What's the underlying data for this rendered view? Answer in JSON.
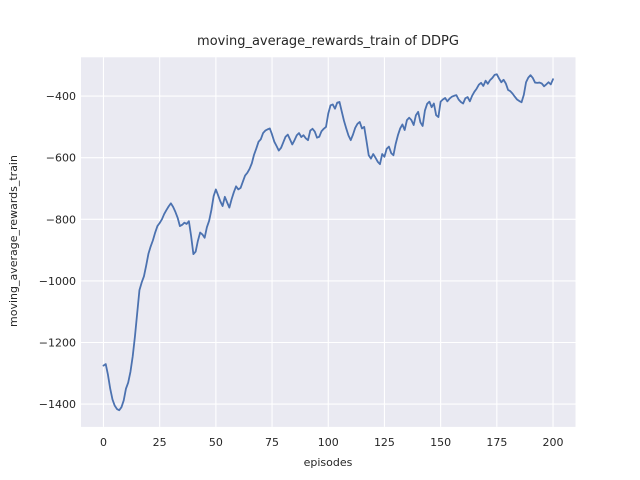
{
  "style": {
    "figure_bg": "#ffffff",
    "plot_bg": "#eaeaf2",
    "grid_color": "#ffffff",
    "text_color": "#262626",
    "line_color": "#4c72b0"
  },
  "chart_data": {
    "type": "line",
    "title": "moving_average_rewards_train of DDPG",
    "xlabel": "episodes",
    "ylabel": "moving_average_rewards_train",
    "x_ticks": [
      0,
      25,
      50,
      75,
      100,
      125,
      150,
      175,
      200
    ],
    "y_ticks": [
      -400,
      -600,
      -800,
      -1000,
      -1200,
      -1400
    ],
    "xlim": [
      -10,
      210
    ],
    "ylim": [
      -1474,
      -274
    ],
    "grid": true,
    "legend_position": "none",
    "series": [
      {
        "name": "moving_average_rewards_train",
        "color": "#4c72b0",
        "x_mode": "index",
        "x_start": 0,
        "x_step": 1,
        "values": [
          -1275,
          -1270,
          -1305,
          -1350,
          -1385,
          -1405,
          -1416,
          -1420,
          -1410,
          -1388,
          -1350,
          -1330,
          -1295,
          -1245,
          -1180,
          -1105,
          -1030,
          -1005,
          -985,
          -950,
          -912,
          -888,
          -868,
          -843,
          -822,
          -812,
          -800,
          -783,
          -770,
          -758,
          -748,
          -760,
          -776,
          -795,
          -822,
          -818,
          -811,
          -815,
          -806,
          -855,
          -913,
          -905,
          -870,
          -843,
          -849,
          -860,
          -826,
          -805,
          -770,
          -725,
          -703,
          -722,
          -742,
          -757,
          -727,
          -745,
          -762,
          -735,
          -712,
          -693,
          -703,
          -698,
          -678,
          -658,
          -649,
          -636,
          -618,
          -590,
          -570,
          -548,
          -540,
          -520,
          -512,
          -508,
          -505,
          -525,
          -548,
          -562,
          -577,
          -568,
          -550,
          -532,
          -525,
          -541,
          -557,
          -543,
          -527,
          -520,
          -533,
          -527,
          -537,
          -543,
          -512,
          -506,
          -515,
          -535,
          -532,
          -514,
          -506,
          -500,
          -457,
          -430,
          -427,
          -441,
          -421,
          -419,
          -450,
          -480,
          -505,
          -528,
          -543,
          -525,
          -503,
          -490,
          -484,
          -505,
          -500,
          -545,
          -592,
          -603,
          -588,
          -600,
          -613,
          -621,
          -588,
          -597,
          -571,
          -564,
          -585,
          -592,
          -555,
          -527,
          -505,
          -492,
          -510,
          -478,
          -470,
          -478,
          -494,
          -462,
          -451,
          -485,
          -497,
          -447,
          -425,
          -418,
          -436,
          -424,
          -462,
          -468,
          -418,
          -411,
          -406,
          -417,
          -408,
          -402,
          -399,
          -397,
          -411,
          -419,
          -424,
          -407,
          -403,
          -417,
          -399,
          -386,
          -376,
          -363,
          -357,
          -367,
          -350,
          -360,
          -348,
          -341,
          -331,
          -329,
          -343,
          -355,
          -347,
          -359,
          -380,
          -384,
          -392,
          -402,
          -411,
          -416,
          -420,
          -396,
          -355,
          -340,
          -332,
          -341,
          -356,
          -357,
          -356,
          -359,
          -368,
          -362,
          -355,
          -362,
          -345
        ]
      }
    ]
  }
}
